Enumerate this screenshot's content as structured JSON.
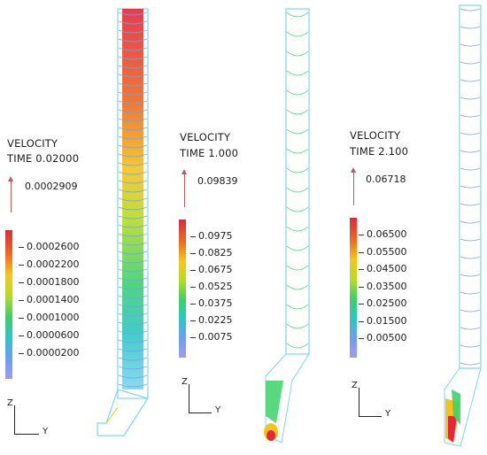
{
  "panels": [
    {
      "title_line1": "VELOCITY",
      "title_line2": "TIME 0.02000",
      "ref_value": "0.0002909",
      "ticks": [
        "0.0002600",
        "0.0002200",
        "0.0001800",
        "0.0001400",
        "0.0001000",
        "0.0000600",
        "0.0000200"
      ],
      "axis_z": "Z",
      "axis_y": "Y"
    },
    {
      "title_line1": "VELOCITY",
      "title_line2": "TIME 1.000",
      "ref_value": "0.09839",
      "ticks": [
        "0.0975",
        "0.0825",
        "0.0675",
        "0.0525",
        "0.0375",
        "0.0225",
        "0.0075"
      ],
      "axis_z": "Z",
      "axis_y": "Y"
    },
    {
      "title_line1": "VELOCITY",
      "title_line2": "TIME 2.100",
      "ref_value": "0.06718",
      "ticks": [
        "0.06500",
        "0.05500",
        "0.04500",
        "0.03500",
        "0.02500",
        "0.01500",
        "0.00500"
      ],
      "axis_z": "Z",
      "axis_y": "Y"
    }
  ],
  "colors": {
    "scale": [
      "#e8253a",
      "#f06a1c",
      "#f7c21a",
      "#b7dc22",
      "#3cd16a",
      "#2bc7c4",
      "#6f9cf0",
      "#9a93ee"
    ],
    "outline": "#7fd6f0",
    "arrow": "#b06060"
  }
}
